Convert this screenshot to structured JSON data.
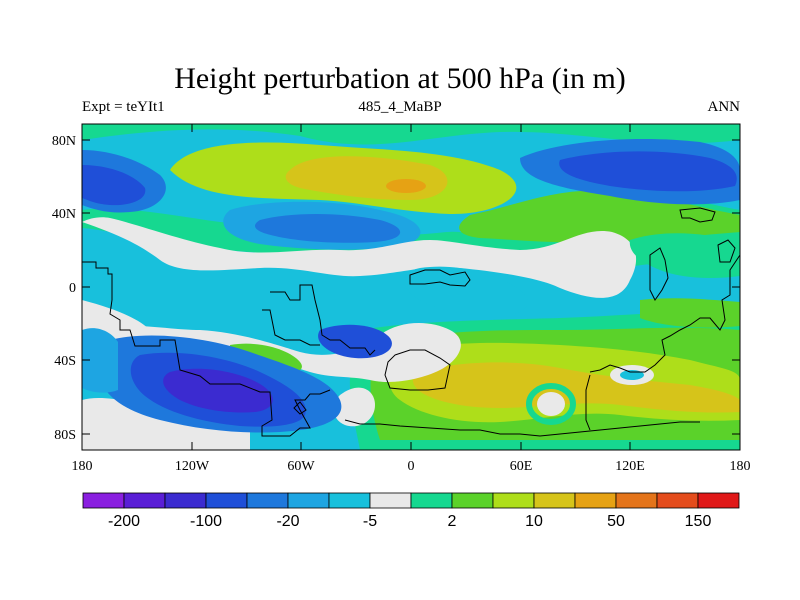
{
  "title": "Height perturbation at 500 hPa (in m)",
  "subtitle": {
    "left": "Expt = teYIt1",
    "center": "485_4_MaBP",
    "right": "ANN"
  },
  "axes": {
    "lat_ticks": [
      "80N",
      "40N",
      "0",
      "40S",
      "80S"
    ],
    "lon_ticks": [
      "180",
      "120W",
      "60W",
      "0",
      "60E",
      "120E",
      "180"
    ]
  },
  "colorbar": {
    "colors": [
      "#8a1fe0",
      "#5a1ed6",
      "#3b2bd0",
      "#1f4fd8",
      "#1e78dc",
      "#1ea5e2",
      "#18c0dc",
      "#e9e9e9",
      "#16d890",
      "#5bd22a",
      "#aede1a",
      "#d6c41a",
      "#e6a214",
      "#e4741a",
      "#e44c1c",
      "#e01818"
    ],
    "labels": [
      "-200",
      "-100",
      "-20",
      "-5",
      "2",
      "10",
      "50",
      "150"
    ]
  }
}
